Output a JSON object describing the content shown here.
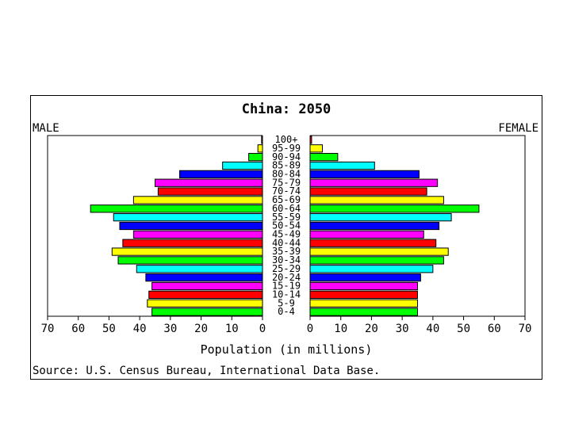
{
  "chart_data": {
    "type": "bar",
    "title": "China: 2050",
    "left_label": "MALE",
    "right_label": "FEMALE",
    "xlabel": "Population (in millions)",
    "source": "Source: U.S. Census Bureau, International Data Base.",
    "xlim": [
      0,
      70
    ],
    "x_ticks": [
      "70",
      "60",
      "50",
      "40",
      "30",
      "20",
      "10",
      "0",
      "0",
      "10",
      "20",
      "30",
      "40",
      "50",
      "60",
      "70"
    ],
    "categories": [
      "0-4",
      "5-9",
      "10-14",
      "15-19",
      "20-24",
      "25-29",
      "30-34",
      "35-39",
      "40-44",
      "45-49",
      "50-54",
      "55-59",
      "60-64",
      "65-69",
      "70-74",
      "75-79",
      "80-84",
      "85-89",
      "90-94",
      "95-99",
      "100+"
    ],
    "series": [
      {
        "name": "MALE",
        "values": [
          36,
          37.5,
          37,
          36,
          38,
          41,
          47,
          49,
          45.5,
          42,
          46.5,
          48.5,
          56,
          42,
          34,
          35,
          27,
          13,
          4.5,
          1.5,
          0.3
        ]
      },
      {
        "name": "FEMALE",
        "values": [
          35,
          35,
          35,
          35,
          36,
          40,
          43.5,
          45,
          41,
          37,
          42,
          46,
          55,
          43.5,
          38,
          41.5,
          35.5,
          21,
          9,
          4,
          0.5
        ]
      }
    ],
    "colors": [
      "#00ff00",
      "#ffff00",
      "#ff0000",
      "#ff00ff",
      "#0000ff",
      "#00ffff"
    ],
    "grid": false,
    "legend": "none"
  }
}
